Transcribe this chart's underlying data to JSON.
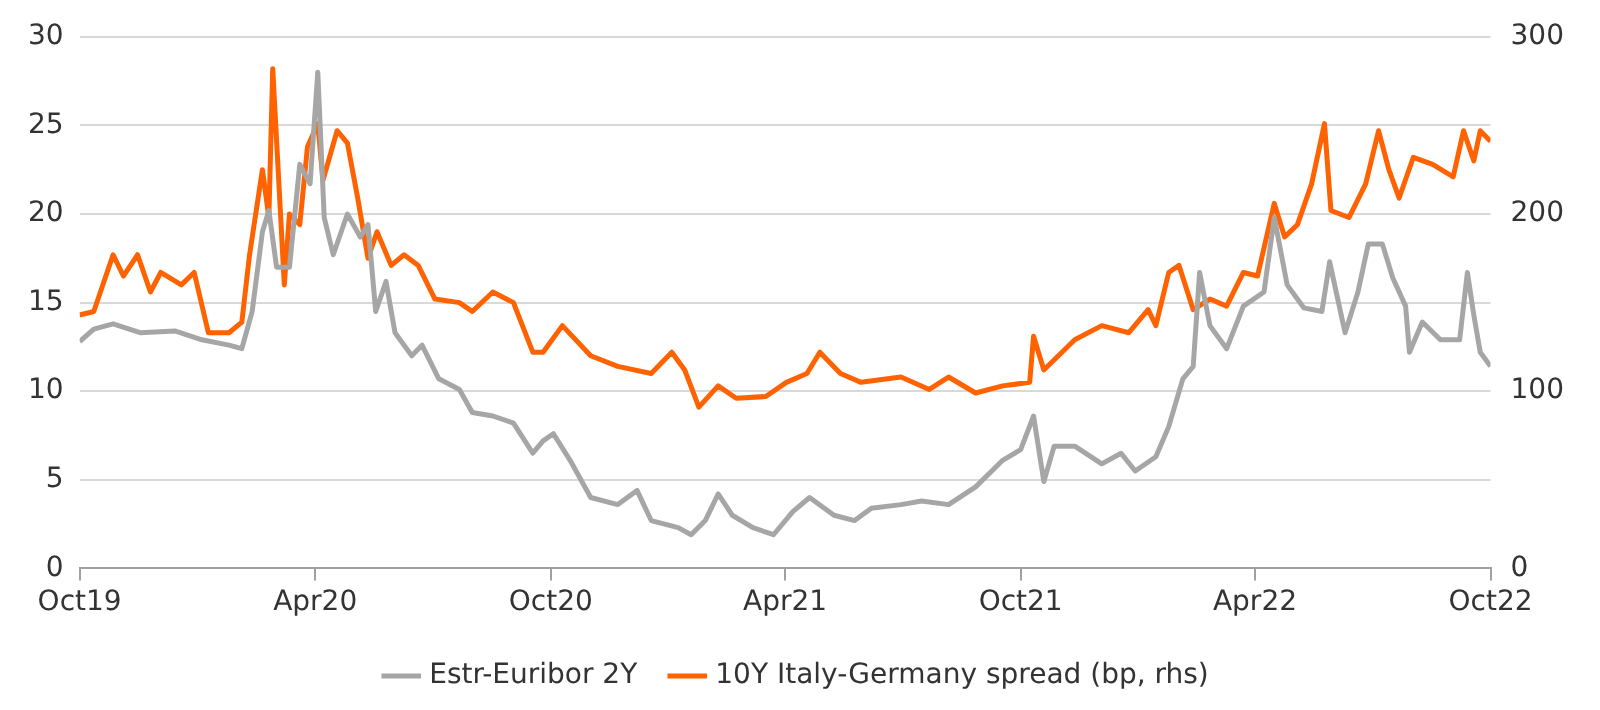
{
  "chart_data": {
    "type": "line",
    "xlim": [
      "2019-10",
      "2022-10"
    ],
    "xticks": [
      {
        "value": "2019-10",
        "label": "Oct19"
      },
      {
        "value": "2020-04",
        "label": "Apr20"
      },
      {
        "value": "2020-10",
        "label": "Oct20"
      },
      {
        "value": "2021-04",
        "label": "Apr21"
      },
      {
        "value": "2021-10",
        "label": "Oct21"
      },
      {
        "value": "2022-04",
        "label": "Apr22"
      },
      {
        "value": "2022-10",
        "label": "Oct22"
      }
    ],
    "ylim": [
      0,
      30
    ],
    "yticks": [
      0,
      5,
      10,
      15,
      20,
      25,
      30
    ],
    "y2lim": [
      0,
      300
    ],
    "y2ticks": [
      0,
      100,
      200,
      300
    ],
    "grid": "y",
    "legend": "bottom",
    "marker": "none",
    "line_style": "solid",
    "series": [
      {
        "name": "Estr-Euribor 2Y",
        "color": "#a6a6a6",
        "axis": "y",
        "x": [
          "2019-10-01",
          "2019-10-12",
          "2019-10-27",
          "2019-11-17",
          "2019-12-14",
          "2020-01-04",
          "2020-01-25",
          "2020-02-04",
          "2020-02-12",
          "2020-02-20",
          "2020-02-25",
          "2020-03-02",
          "2020-03-12",
          "2020-03-20",
          "2020-03-28",
          "2020-04-03",
          "2020-04-08",
          "2020-04-15",
          "2020-04-26",
          "2020-05-06",
          "2020-05-12",
          "2020-05-18",
          "2020-05-26",
          "2020-06-02",
          "2020-06-15",
          "2020-06-23",
          "2020-07-06",
          "2020-07-22",
          "2020-08-01",
          "2020-08-17",
          "2020-09-02",
          "2020-09-17",
          "2020-09-25",
          "2020-10-03",
          "2020-10-16",
          "2020-11-01",
          "2020-11-22",
          "2020-12-07",
          "2020-12-18",
          "2021-01-08",
          "2021-01-18",
          "2021-01-29",
          "2021-02-08",
          "2021-02-19",
          "2021-03-07",
          "2021-03-23",
          "2021-04-07",
          "2021-04-20",
          "2021-05-09",
          "2021-05-25",
          "2021-06-07",
          "2021-06-30",
          "2021-07-16",
          "2021-08-06",
          "2021-08-27",
          "2021-09-17",
          "2021-10-01",
          "2021-10-11",
          "2021-10-19",
          "2021-10-27",
          "2021-11-12",
          "2021-12-03",
          "2021-12-18",
          "2021-12-29",
          "2022-01-14",
          "2022-01-24",
          "2022-02-04",
          "2022-02-12",
          "2022-02-17",
          "2022-02-25",
          "2022-03-10",
          "2022-03-23",
          "2022-04-08",
          "2022-04-16",
          "2022-04-26",
          "2022-05-09",
          "2022-05-23",
          "2022-05-29",
          "2022-06-10",
          "2022-06-20",
          "2022-06-28",
          "2022-07-09",
          "2022-07-17",
          "2022-07-27",
          "2022-07-30",
          "2022-08-09",
          "2022-08-23",
          "2022-09-07",
          "2022-09-13",
          "2022-09-18",
          "2022-09-23",
          "2022-10-01"
        ],
        "values": [
          12.8,
          13.5,
          13.8,
          13.3,
          13.4,
          12.9,
          12.6,
          12.4,
          14.5,
          19,
          20.2,
          17,
          17,
          22.8,
          21.7,
          28,
          19.8,
          17.7,
          20,
          18.7,
          19.4,
          14.5,
          16.2,
          13.3,
          12,
          12.6,
          10.7,
          10.1,
          8.8,
          8.6,
          8.2,
          6.5,
          7.2,
          7.6,
          6.1,
          4,
          3.6,
          4.4,
          2.7,
          2.3,
          1.9,
          2.7,
          4.2,
          3,
          2.3,
          1.9,
          3.2,
          4,
          3,
          2.7,
          3.4,
          3.6,
          3.8,
          3.6,
          4.6,
          6.1,
          6.7,
          8.6,
          4.9,
          6.9,
          6.9,
          5.9,
          6.5,
          5.5,
          6.3,
          8,
          10.7,
          11.4,
          16.7,
          13.7,
          12.4,
          14.8,
          15.6,
          19.8,
          16,
          14.7,
          14.5,
          17.3,
          13.3,
          15.6,
          18.3,
          18.3,
          16.4,
          14.8,
          12.2,
          13.9,
          12.9,
          12.9,
          16.7,
          14.3,
          12.2,
          11.4
        ]
      },
      {
        "name": "10Y Italy-Germany spread (bp, rhs)",
        "color": "#ff6200",
        "axis": "y2",
        "x": [
          "2019-10-01",
          "2019-10-12",
          "2019-10-27",
          "2019-11-04",
          "2019-11-15",
          "2019-11-25",
          "2019-12-03",
          "2019-12-19",
          "2019-12-29",
          "2020-01-09",
          "2020-01-25",
          "2020-02-04",
          "2020-02-10",
          "2020-02-20",
          "2020-02-25",
          "2020-02-28",
          "2020-03-08",
          "2020-03-12",
          "2020-03-20",
          "2020-03-26",
          "2020-04-03",
          "2020-04-07",
          "2020-04-18",
          "2020-04-26",
          "2020-05-04",
          "2020-05-12",
          "2020-05-19",
          "2020-05-30",
          "2020-06-09",
          "2020-06-20",
          "2020-07-03",
          "2020-07-22",
          "2020-08-01",
          "2020-08-17",
          "2020-09-02",
          "2020-09-17",
          "2020-09-25",
          "2020-10-10",
          "2020-11-01",
          "2020-11-22",
          "2020-12-18",
          "2021-01-03",
          "2021-01-13",
          "2021-01-24",
          "2021-02-08",
          "2021-02-22",
          "2021-03-17",
          "2021-04-02",
          "2021-04-18",
          "2021-04-28",
          "2021-05-14",
          "2021-05-30",
          "2021-06-30",
          "2021-07-22",
          "2021-08-06",
          "2021-08-27",
          "2021-09-17",
          "2021-10-08",
          "2021-10-11",
          "2021-10-19",
          "2021-11-12",
          "2021-12-03",
          "2021-12-24",
          "2022-01-08",
          "2022-01-14",
          "2022-01-24",
          "2022-02-01",
          "2022-02-12",
          "2022-02-25",
          "2022-03-10",
          "2022-03-23",
          "2022-04-03",
          "2022-04-16",
          "2022-04-24",
          "2022-05-04",
          "2022-05-15",
          "2022-05-25",
          "2022-05-30",
          "2022-06-13",
          "2022-06-26",
          "2022-07-06",
          "2022-07-14",
          "2022-07-22",
          "2022-08-02",
          "2022-08-17",
          "2022-09-02",
          "2022-09-10",
          "2022-09-18",
          "2022-09-23",
          "2022-10-01"
        ],
        "values": [
          143,
          145,
          177,
          165,
          177,
          156,
          167,
          160,
          167,
          133,
          133,
          139,
          177,
          225,
          198,
          282,
          160,
          200,
          194,
          238,
          251,
          219,
          247,
          240,
          209,
          175,
          190,
          171,
          177,
          171,
          152,
          150,
          145,
          156,
          150,
          122,
          122,
          137,
          120,
          114,
          110,
          122,
          112,
          91,
          103,
          96,
          97,
          105,
          110,
          122,
          110,
          105,
          108,
          101,
          108,
          99,
          103,
          105,
          131,
          112,
          129,
          137,
          133,
          146,
          137,
          167,
          171,
          146,
          152,
          148,
          167,
          165,
          206,
          187,
          194,
          217,
          251,
          202,
          198,
          217,
          247,
          225,
          209,
          232,
          228,
          221,
          247,
          230,
          247,
          241
        ]
      }
    ]
  }
}
